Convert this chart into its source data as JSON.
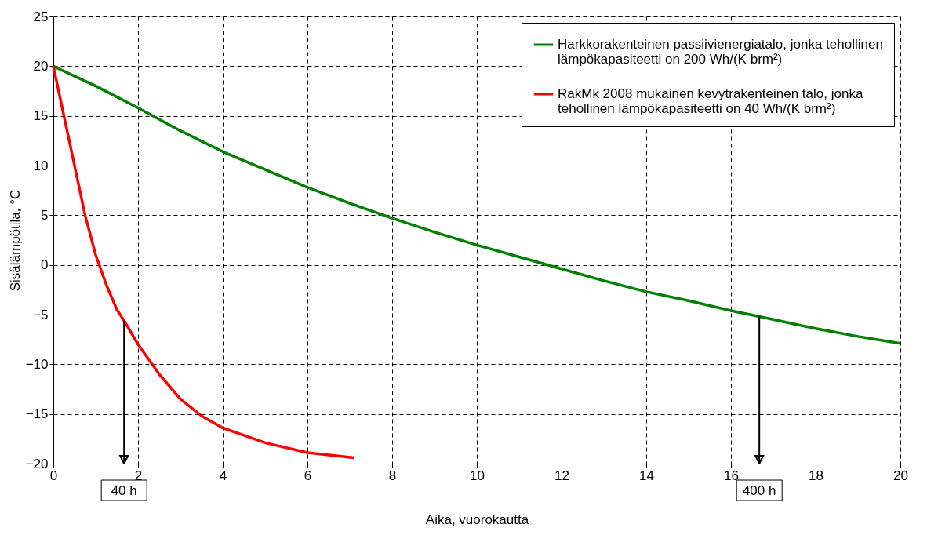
{
  "chart_data": {
    "type": "line",
    "xlabel": "Aika, vuorokautta",
    "ylabel": "Sisälämpötila, °C",
    "xlim": [
      0,
      20
    ],
    "xticks": [
      0,
      2,
      4,
      6,
      8,
      10,
      12,
      14,
      16,
      18,
      20
    ],
    "ylim": [
      -20,
      25
    ],
    "yticks": [
      -20,
      -15,
      -10,
      -5,
      0,
      5,
      10,
      15,
      20,
      25
    ],
    "grid": true,
    "legend": "top right",
    "line_style": "solid",
    "marker": "none",
    "series": [
      {
        "name": "Harkkorakenteinen passiivienergiatalo, jonka tehollinen lämpökapasiteetti on 200 Wh/(K brm²)",
        "color": "#008000",
        "x": [
          0,
          1,
          2,
          3,
          4,
          5,
          6,
          7,
          8,
          9,
          10,
          11,
          12,
          13,
          14,
          15,
          16,
          16.67,
          17,
          18,
          19,
          20
        ],
        "values": [
          20,
          18,
          15.8,
          13.5,
          11.4,
          9.6,
          7.8,
          6.2,
          4.7,
          3.3,
          2,
          0.8,
          -0.4,
          -1.6,
          -2.7,
          -3.6,
          -4.6,
          -5.2,
          -5.5,
          -6.4,
          -7.2,
          -7.9
        ]
      },
      {
        "name": "RakMk 2008 mukainen kevytrakenteinen talo, jonka tehollinen lämpökapasiteetti on 40 Wh/(K brm²)",
        "color": "#ff0000",
        "x": [
          0,
          0.25,
          0.5,
          0.75,
          1,
          1.25,
          1.5,
          1.67,
          2,
          2.5,
          3,
          3.5,
          4,
          5,
          6,
          7.1
        ],
        "values": [
          20,
          15,
          10,
          5,
          1,
          -2,
          -4.5,
          -5.6,
          -8,
          -11,
          -13.5,
          -15.2,
          -16.4,
          -17.9,
          -18.9,
          -19.4
        ]
      }
    ],
    "ref_lines": [
      {
        "axis": "x",
        "value": 1.67,
        "label": "40 h",
        "color": "#000000"
      },
      {
        "axis": "x",
        "value": 16.67,
        "label": "400 h",
        "color": "#000000"
      }
    ]
  }
}
